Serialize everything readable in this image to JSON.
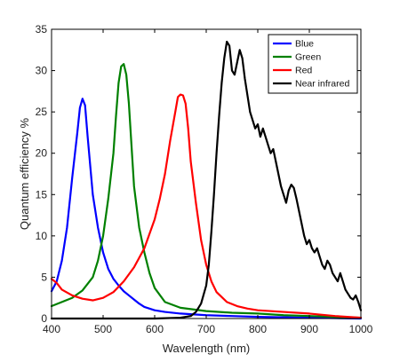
{
  "chart_data": {
    "type": "line",
    "title": "",
    "xlabel": "Wavelength (nm)",
    "ylabel": "Quantum efficiency %",
    "xlim": [
      400,
      1000
    ],
    "ylim": [
      0,
      35
    ],
    "xticks": [
      400,
      500,
      600,
      700,
      800,
      900,
      1000
    ],
    "yticks": [
      0,
      5,
      10,
      15,
      20,
      25,
      30,
      35
    ],
    "grid": false,
    "legend_position": "top-right",
    "series": [
      {
        "name": "Blue",
        "color": "#0000ff",
        "x": [
          400,
          410,
          420,
          430,
          440,
          450,
          455,
          460,
          465,
          470,
          480,
          490,
          500,
          510,
          520,
          530,
          540,
          550,
          560,
          570,
          580,
          600,
          620,
          650,
          700,
          750,
          800,
          850,
          900,
          950,
          1000
        ],
        "y": [
          3.3,
          4.5,
          7.0,
          11.0,
          17.0,
          22.5,
          25.5,
          26.6,
          25.8,
          22.0,
          15.0,
          11.0,
          8.0,
          6.0,
          4.8,
          4.0,
          3.3,
          2.8,
          2.3,
          1.8,
          1.4,
          1.0,
          0.8,
          0.6,
          0.4,
          0.3,
          0.2,
          0.15,
          0.1,
          0.05,
          0.0
        ]
      },
      {
        "name": "Green",
        "color": "#008000",
        "x": [
          400,
          420,
          440,
          460,
          480,
          490,
          500,
          510,
          520,
          525,
          530,
          535,
          540,
          545,
          550,
          555,
          560,
          570,
          580,
          590,
          600,
          620,
          650,
          700,
          750,
          800,
          850,
          900,
          950,
          1000
        ],
        "y": [
          1.5,
          2.0,
          2.5,
          3.4,
          5.0,
          7.0,
          10.0,
          14.5,
          20.0,
          24.5,
          28.5,
          30.5,
          30.8,
          29.5,
          26.0,
          21.0,
          16.0,
          11.0,
          8.0,
          5.5,
          3.7,
          2.0,
          1.3,
          0.9,
          0.7,
          0.6,
          0.4,
          0.3,
          0.2,
          0.1
        ]
      },
      {
        "name": "Red",
        "color": "#ff0000",
        "x": [
          400,
          410,
          420,
          440,
          460,
          480,
          500,
          520,
          540,
          560,
          580,
          600,
          610,
          620,
          630,
          640,
          645,
          650,
          655,
          660,
          665,
          670,
          680,
          690,
          700,
          710,
          720,
          740,
          760,
          780,
          800,
          850,
          900,
          950,
          1000
        ],
        "y": [
          4.8,
          4.3,
          3.5,
          2.8,
          2.4,
          2.2,
          2.5,
          3.2,
          4.5,
          6.2,
          8.5,
          12.0,
          14.5,
          17.5,
          21.5,
          25.0,
          26.8,
          27.1,
          27.0,
          26.0,
          23.0,
          19.0,
          14.0,
          9.5,
          6.5,
          4.5,
          3.2,
          2.0,
          1.5,
          1.2,
          1.0,
          0.8,
          0.6,
          0.3,
          0.1
        ]
      },
      {
        "name": "Near infrared",
        "color": "#000000",
        "x": [
          400,
          600,
          650,
          670,
          680,
          690,
          700,
          705,
          710,
          715,
          720,
          725,
          730,
          735,
          740,
          745,
          750,
          755,
          760,
          765,
          770,
          775,
          780,
          785,
          790,
          795,
          800,
          805,
          810,
          815,
          820,
          825,
          830,
          835,
          840,
          845,
          850,
          855,
          860,
          865,
          870,
          875,
          880,
          885,
          890,
          895,
          900,
          905,
          910,
          915,
          920,
          925,
          930,
          935,
          940,
          945,
          950,
          955,
          960,
          965,
          970,
          975,
          980,
          985,
          990,
          995,
          1000
        ],
        "y": [
          0,
          0,
          0.1,
          0.3,
          0.8,
          1.8,
          4.0,
          6.5,
          10.5,
          15.0,
          20.0,
          24.5,
          28.5,
          31.5,
          33.5,
          33.0,
          30.0,
          29.5,
          31.0,
          32.5,
          31.5,
          29.0,
          27.0,
          25.0,
          24.0,
          23.0,
          23.5,
          22.0,
          23.0,
          22.0,
          21.0,
          20.0,
          20.5,
          19.0,
          17.5,
          16.0,
          15.0,
          14.0,
          15.5,
          16.2,
          15.8,
          14.5,
          13.0,
          11.5,
          10.0,
          9.0,
          9.5,
          8.5,
          8.0,
          8.5,
          7.5,
          6.5,
          6.0,
          7.0,
          6.5,
          5.5,
          5.0,
          4.5,
          5.5,
          4.5,
          3.5,
          3.0,
          2.5,
          2.3,
          2.8,
          2.0,
          1.0
        ]
      }
    ]
  }
}
